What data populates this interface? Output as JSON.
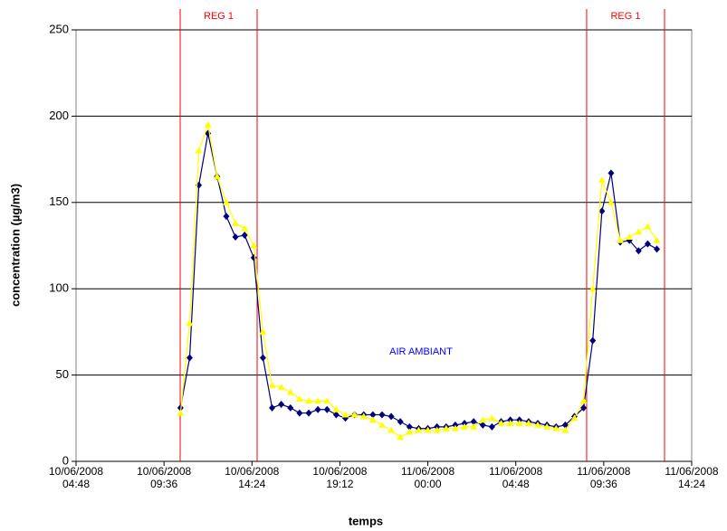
{
  "chart_data": {
    "type": "line",
    "xlabel": "temps",
    "ylabel": "concentration (µg/m3)",
    "x": [
      "2008-06-10 10:30",
      "2008-06-10 11:00",
      "2008-06-10 11:30",
      "2008-06-10 12:00",
      "2008-06-10 12:30",
      "2008-06-10 13:00",
      "2008-06-10 13:30",
      "2008-06-10 14:00",
      "2008-06-10 14:30",
      "2008-06-10 15:00",
      "2008-06-10 15:30",
      "2008-06-10 16:00",
      "2008-06-10 16:30",
      "2008-06-10 17:00",
      "2008-06-10 17:30",
      "2008-06-10 18:00",
      "2008-06-10 18:30",
      "2008-06-10 19:00",
      "2008-06-10 19:30",
      "2008-06-10 20:00",
      "2008-06-10 20:30",
      "2008-06-10 21:00",
      "2008-06-10 21:30",
      "2008-06-10 22:00",
      "2008-06-10 22:30",
      "2008-06-10 23:00",
      "2008-06-10 23:30",
      "2008-06-11 00:00",
      "2008-06-11 00:30",
      "2008-06-11 01:00",
      "2008-06-11 01:30",
      "2008-06-11 02:00",
      "2008-06-11 02:30",
      "2008-06-11 03:00",
      "2008-06-11 03:30",
      "2008-06-11 04:00",
      "2008-06-11 04:30",
      "2008-06-11 05:00",
      "2008-06-11 05:30",
      "2008-06-11 06:00",
      "2008-06-11 06:30",
      "2008-06-11 07:00",
      "2008-06-11 07:30",
      "2008-06-11 08:00",
      "2008-06-11 08:30",
      "2008-06-11 09:00",
      "2008-06-11 09:30",
      "2008-06-11 10:00",
      "2008-06-11 10:30",
      "2008-06-11 11:00",
      "2008-06-11 11:30",
      "2008-06-11 12:00",
      "2008-06-11 12:30"
    ],
    "series": [
      {
        "color": "#000080",
        "marker": "diamond",
        "values": [
          31,
          60,
          160,
          190,
          165,
          142,
          130,
          131,
          118,
          60,
          31,
          33,
          31,
          28,
          28,
          30,
          30,
          27,
          25,
          27,
          27,
          27,
          27,
          26,
          23,
          20,
          19,
          19,
          20,
          20,
          21,
          22,
          23,
          21,
          20,
          23,
          24,
          24,
          23,
          22,
          21,
          20,
          21,
          26,
          31,
          70,
          145,
          167,
          127,
          128,
          122,
          126,
          123
        ]
      },
      {
        "color": "#ffff00",
        "marker": "triangle",
        "values": [
          28,
          80,
          180,
          195,
          165,
          150,
          138,
          135,
          125,
          75,
          44,
          43,
          40,
          36,
          35,
          35,
          35,
          30,
          27,
          27,
          26,
          24,
          21,
          18,
          14,
          17,
          18,
          18,
          18,
          19,
          19,
          20,
          20,
          24,
          25,
          22,
          22,
          22,
          22,
          21,
          20,
          19,
          18,
          25,
          35,
          100,
          163,
          150,
          128,
          130,
          133,
          136,
          128
        ]
      }
    ],
    "xlim": [
      "2008-06-10 04:48",
      "2008-06-11 14:24"
    ],
    "xticks": [
      {
        "value": "2008-06-10 04:48",
        "label": "10/06/2008\n04:48"
      },
      {
        "value": "2008-06-10 09:36",
        "label": "10/06/2008\n09:36"
      },
      {
        "value": "2008-06-10 14:24",
        "label": "10/06/2008\n14:24"
      },
      {
        "value": "2008-06-10 19:12",
        "label": "10/06/2008\n19:12"
      },
      {
        "value": "2008-06-11 00:00",
        "label": "11/06/2008\n00:00"
      },
      {
        "value": "2008-06-11 04:48",
        "label": "11/06/2008\n04:48"
      },
      {
        "value": "2008-06-11 09:36",
        "label": "11/06/2008\n09:36"
      },
      {
        "value": "2008-06-11 14:24",
        "label": "11/06/2008\n14:24"
      }
    ],
    "ylim": [
      0,
      250
    ],
    "yticks": [
      0,
      50,
      100,
      150,
      200,
      250
    ],
    "grid": true,
    "regions": [
      {
        "label": "REG 1",
        "start": "2008-06-10 10:29",
        "end": "2008-06-10 14:41",
        "color": "#ff0000"
      },
      {
        "label": "REG 1",
        "start": "2008-06-11 08:40",
        "end": "2008-06-11 12:55",
        "color": "#ff0000"
      }
    ],
    "annotation": {
      "text": "AIR AMBIANT",
      "color": "#0000ff"
    }
  }
}
